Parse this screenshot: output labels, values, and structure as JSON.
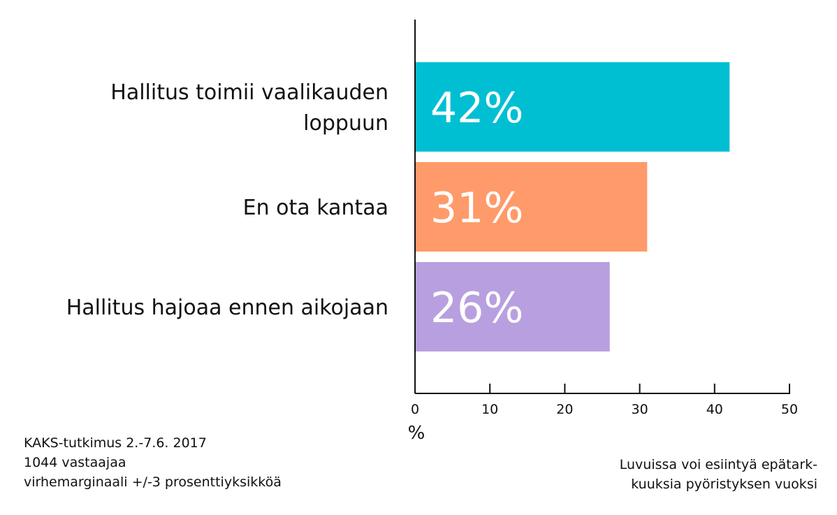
{
  "chart_data": {
    "type": "bar",
    "orientation": "horizontal",
    "categories": [
      [
        "Hallitus toimii vaalikauden",
        "loppuun"
      ],
      [
        "En ota kantaa"
      ],
      [
        "Hallitus hajoaa ennen aikojaan"
      ]
    ],
    "values": [
      42,
      31,
      26
    ],
    "value_labels": [
      "42%",
      "31%",
      "26%"
    ],
    "colors": [
      "#00bfd3",
      "#ff9a6a",
      "#b8a0e0"
    ],
    "xlim": [
      0,
      50
    ],
    "xticks": [
      0,
      10,
      20,
      30,
      40,
      50
    ],
    "xlabel": "%",
    "grid": false
  },
  "footnotes": {
    "left": [
      "KAKS-tutkimus 2.-7.6. 2017",
      "1044 vastaajaa",
      "virhemarginaali +/-3 prosenttiyksikköä"
    ],
    "right": [
      "Luvuissa voi esiintyä epätark-",
      "kuuksia pyöristyksen vuoksi"
    ]
  }
}
